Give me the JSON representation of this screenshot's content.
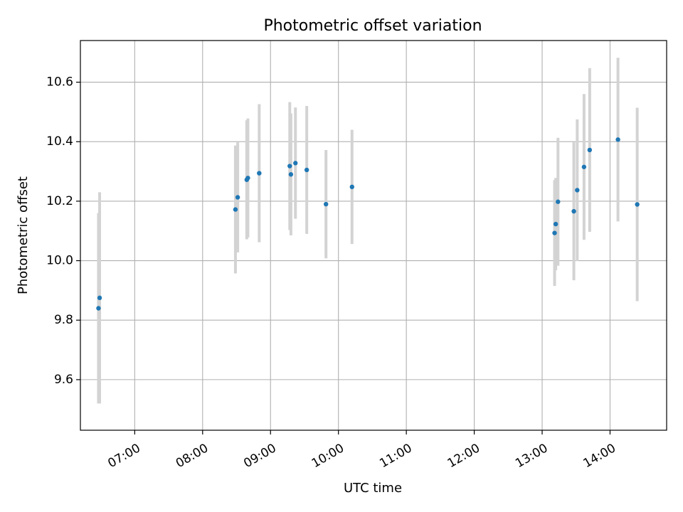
{
  "chart_data": {
    "type": "scatter",
    "title": "Photometric offset variation",
    "xlabel": "UTC time",
    "ylabel": "Photometric offset",
    "xlim": [
      "06:12",
      "14:50"
    ],
    "ylim": [
      9.43,
      10.74
    ],
    "x_ticks": [
      "07:00",
      "08:00",
      "09:00",
      "10:00",
      "11:00",
      "12:00",
      "13:00",
      "14:00"
    ],
    "y_ticks": [
      "9.6",
      "9.8",
      "10.0",
      "10.2",
      "10.4",
      "10.6"
    ],
    "grid": true,
    "legend": "none",
    "colors": {
      "point": "#1f77b4",
      "errorbar": "#d3d3d3",
      "grid": "#b0b0b0",
      "axis": "#000000"
    },
    "points": [
      {
        "x": "06:28",
        "y": 9.84,
        "yerr": 0.32
      },
      {
        "x": "06:29",
        "y": 9.875,
        "yerr": 0.355
      },
      {
        "x": "08:29",
        "y": 10.172,
        "yerr": 0.215
      },
      {
        "x": "08:31",
        "y": 10.213,
        "yerr": 0.185
      },
      {
        "x": "08:39",
        "y": 10.272,
        "yerr": 0.2
      },
      {
        "x": "08:40",
        "y": 10.278,
        "yerr": 0.2
      },
      {
        "x": "08:50",
        "y": 10.294,
        "yerr": 0.232
      },
      {
        "x": "09:17",
        "y": 10.318,
        "yerr": 0.215
      },
      {
        "x": "09:18",
        "y": 10.29,
        "yerr": 0.205
      },
      {
        "x": "09:22",
        "y": 10.328,
        "yerr": 0.187
      },
      {
        "x": "09:32",
        "y": 10.305,
        "yerr": 0.215
      },
      {
        "x": "09:49",
        "y": 10.19,
        "yerr": 0.182
      },
      {
        "x": "10:12",
        "y": 10.248,
        "yerr": 0.192
      },
      {
        "x": "13:11",
        "y": 10.093,
        "yerr": 0.178
      },
      {
        "x": "13:12",
        "y": 10.123,
        "yerr": 0.155
      },
      {
        "x": "13:14",
        "y": 10.198,
        "yerr": 0.215
      },
      {
        "x": "13:28",
        "y": 10.166,
        "yerr": 0.232
      },
      {
        "x": "13:31",
        "y": 10.237,
        "yerr": 0.238
      },
      {
        "x": "13:37",
        "y": 10.315,
        "yerr": 0.245
      },
      {
        "x": "13:42",
        "y": 10.372,
        "yerr": 0.275
      },
      {
        "x": "14:07",
        "y": 10.407,
        "yerr": 0.275
      },
      {
        "x": "14:24",
        "y": 10.189,
        "yerr": 0.325
      }
    ]
  }
}
